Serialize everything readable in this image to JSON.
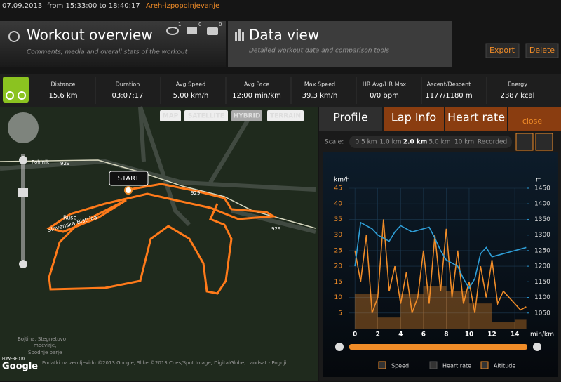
{
  "header": {
    "date": "07.09.2013",
    "range": "from 15:33:00 to 18:40:17",
    "name": "Areh-izpopolnjevanje"
  },
  "tabs": [
    {
      "title": "Workout overview",
      "subtitle": "Comments, media and overall stats of the workout"
    },
    {
      "title": "Data view",
      "subtitle": "Detailed workout data and comparison tools"
    }
  ],
  "counts": [
    "1",
    "0",
    "0"
  ],
  "actions": [
    "Export",
    "Delete"
  ],
  "stats": [
    {
      "label": "Distance",
      "value": "15.6 km"
    },
    {
      "label": "Duration",
      "value": "03:07:17"
    },
    {
      "label": "Avg Speed",
      "value": "5.00 km/h"
    },
    {
      "label": "Avg Pace",
      "value": "12:00 min/km"
    },
    {
      "label": "Max Speed",
      "value": "39.3 km/h"
    },
    {
      "label": "HR Avg/HR Max",
      "value": "0/0 bpm"
    },
    {
      "label": "Ascent/Descent",
      "value": "1177/1180 m"
    },
    {
      "label": "Energy",
      "value": "2387 kcal"
    }
  ],
  "map": {
    "buttons": [
      "MAP",
      "SATELLITE",
      "HYBRID",
      "TERRAIN"
    ],
    "start": "START",
    "places": [
      "Ruse",
      "Slovenska Bistrica",
      "929",
      "929",
      "929",
      "Bojtina, Stegnetovo",
      "močvirje,",
      "Spodnje barje",
      "Pohlnik"
    ],
    "attribution": "Podatki na zemljevidu ©2013 Google, Slike ©2013 Cnes/Spot Image, DigitalGlobe, Landsat - Pogoji",
    "powered": "POWERED BY",
    "logo": "Google"
  },
  "panel": {
    "tabs": [
      "Profile",
      "Lap Info",
      "Heart rate"
    ],
    "close": "close",
    "scale_label": "Scale:",
    "scales": [
      "0.5 km",
      "1.0 km",
      "2.0 km",
      "5.0 km",
      "10 km",
      "Recorded"
    ]
  },
  "chart_data": {
    "type": "line",
    "y_label": "km/h",
    "y2_label": "m",
    "x_label": "min/km",
    "x": [
      0,
      0.5,
      1,
      1.5,
      2,
      2.5,
      3,
      3.5,
      4,
      4.5,
      5,
      5.5,
      6,
      6.5,
      7,
      7.5,
      8,
      8.5,
      9,
      9.5,
      10,
      10.5,
      11,
      11.5,
      12,
      12.5,
      13,
      13.5,
      14,
      14.5,
      15
    ],
    "series": [
      {
        "name": "Speed",
        "color": "#f08c28",
        "values": [
          25,
          15,
          30,
          5,
          10,
          35,
          12,
          20,
          8,
          18,
          5,
          10,
          25,
          8,
          30,
          12,
          32,
          10,
          25,
          8,
          15,
          5,
          20,
          10,
          22,
          8,
          12,
          10,
          8,
          6,
          7
        ]
      },
      {
        "name": "Heart rate",
        "color": "#9b2f6e",
        "visible": false,
        "values": [
          null,
          null,
          null,
          null,
          null,
          null,
          null,
          null,
          null,
          null,
          null,
          null,
          null,
          null,
          null,
          null,
          null,
          null,
          null,
          null,
          null,
          null,
          null,
          null,
          null,
          null,
          null,
          null,
          null,
          null,
          null
        ]
      },
      {
        "name": "Altitude",
        "color": "#2f9fd8",
        "axis": "y2",
        "values": [
          1200,
          1340,
          1330,
          1320,
          1300,
          1290,
          1280,
          1310,
          1330,
          1320,
          1310,
          1315,
          1320,
          1325,
          1290,
          1250,
          1220,
          1210,
          1200,
          1160,
          1130,
          1160,
          1240,
          1260,
          1230,
          1235,
          1240,
          1245,
          1250,
          1255,
          1260
        ]
      }
    ],
    "segments": {
      "bins": [
        0,
        2,
        4,
        6,
        8,
        10,
        12,
        14,
        15
      ],
      "values": [
        11,
        3.5,
        11,
        13.5,
        12,
        8,
        2,
        3
      ]
    },
    "xlim": [
      -0.5,
      15.1
    ],
    "xticks": [
      0,
      2,
      4,
      6,
      8,
      10,
      12,
      14
    ],
    "ylim": [
      0,
      45
    ],
    "yticks": [
      5,
      10,
      15,
      20,
      25,
      30,
      35,
      40,
      45
    ],
    "y2lim": [
      1000,
      1450
    ],
    "y2ticks": [
      1050,
      1100,
      1150,
      1200,
      1250,
      1300,
      1350,
      1400,
      1450
    ],
    "grid": true
  }
}
